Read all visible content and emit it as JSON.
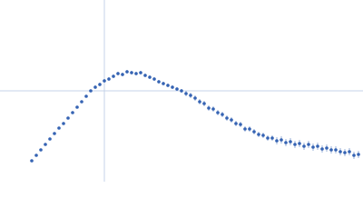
{
  "chart_data": {
    "type": "scatter",
    "color": "#3563b3",
    "xlim": [
      0,
      400
    ],
    "ylim": [
      0,
      200
    ],
    "reference_lines": {
      "x": 115,
      "y": 100
    },
    "reference_color": "#c5d3e8",
    "x": [
      35,
      40,
      45,
      50,
      55,
      60,
      65,
      70,
      75,
      80,
      85,
      90,
      95,
      100,
      105,
      110,
      115,
      120,
      125,
      130,
      135,
      140,
      145,
      150,
      155,
      160,
      165,
      170,
      175,
      180,
      185,
      190,
      195,
      200,
      205,
      210,
      215,
      220,
      225,
      230,
      235,
      240,
      245,
      250,
      255,
      260,
      265,
      270,
      275,
      280,
      285,
      290,
      295,
      300,
      305,
      310,
      315,
      320,
      325,
      330,
      335,
      340,
      345,
      350,
      355,
      360,
      365,
      370,
      375,
      380,
      385,
      390,
      395
    ],
    "values": [
      23,
      29,
      35,
      41,
      47,
      53,
      59,
      64,
      70,
      76,
      82,
      88,
      94,
      100,
      104,
      107,
      111,
      113,
      116,
      119,
      118,
      121,
      120,
      119,
      120,
      117,
      115,
      113,
      110,
      108,
      106,
      104,
      102,
      100,
      97,
      95,
      92,
      88,
      86,
      81,
      80,
      76,
      74,
      70,
      68,
      64,
      63,
      58,
      58,
      55,
      52,
      51,
      48,
      48,
      45,
      46,
      43,
      44,
      41,
      42,
      39,
      41,
      38,
      39,
      36,
      37,
      35,
      35,
      33,
      32,
      33,
      29,
      30
    ],
    "errors": [
      1,
      1,
      1,
      1,
      1,
      1,
      1,
      1,
      1,
      1,
      1,
      1,
      1,
      1,
      2,
      2,
      2,
      2,
      2,
      2,
      2,
      2,
      2,
      2,
      2,
      2,
      2,
      2,
      2,
      2,
      2,
      2,
      2,
      2,
      3,
      3,
      3,
      3,
      3,
      3,
      3,
      3,
      3,
      3,
      3,
      3,
      3,
      3,
      3,
      3,
      3,
      3,
      3,
      3,
      4,
      4,
      4,
      4,
      4,
      4,
      4,
      4,
      4,
      4,
      4,
      4,
      4,
      4,
      4,
      4,
      4,
      4,
      4
    ]
  }
}
